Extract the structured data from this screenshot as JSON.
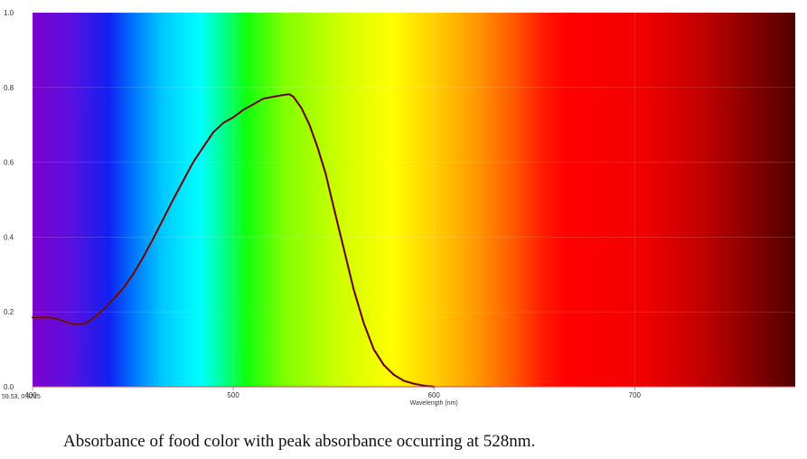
{
  "chart_data": {
    "type": "line",
    "title": "",
    "xlabel": "Wavelength (nm)",
    "ylabel": "",
    "xlim": [
      400,
      780
    ],
    "ylim": [
      0,
      1.0
    ],
    "x_ticks": [
      400,
      500,
      600,
      700
    ],
    "y_ticks": [
      "0.0",
      "0.2",
      "0.4",
      "0.6",
      "0.8",
      "1.0"
    ],
    "grid": true,
    "background": "visible-spectrum-gradient",
    "series": [
      {
        "name": "",
        "color": "#8b1a1a",
        "x": [
          400,
          408,
          412,
          417,
          421,
          426,
          430,
          435,
          440,
          445,
          450,
          455,
          460,
          465,
          470,
          475,
          480,
          485,
          490,
          495,
          500,
          505,
          510,
          515,
          520,
          525,
          528,
          530,
          534,
          538,
          542,
          546,
          550,
          555,
          560,
          565,
          570,
          575,
          580,
          585,
          590,
          595,
          600
        ],
        "y": [
          0.185,
          0.185,
          0.182,
          0.172,
          0.166,
          0.168,
          0.182,
          0.205,
          0.232,
          0.262,
          0.3,
          0.345,
          0.395,
          0.447,
          0.5,
          0.55,
          0.6,
          0.64,
          0.68,
          0.705,
          0.72,
          0.74,
          0.755,
          0.77,
          0.775,
          0.78,
          0.782,
          0.775,
          0.745,
          0.7,
          0.64,
          0.57,
          0.48,
          0.37,
          0.26,
          0.17,
          0.1,
          0.058,
          0.032,
          0.016,
          0.008,
          0.003,
          0.0
        ]
      }
    ]
  },
  "cursor_readout": "59.53, 0.3215",
  "caption": "Absorbance of food color with peak absorbance occurring at 528nm."
}
